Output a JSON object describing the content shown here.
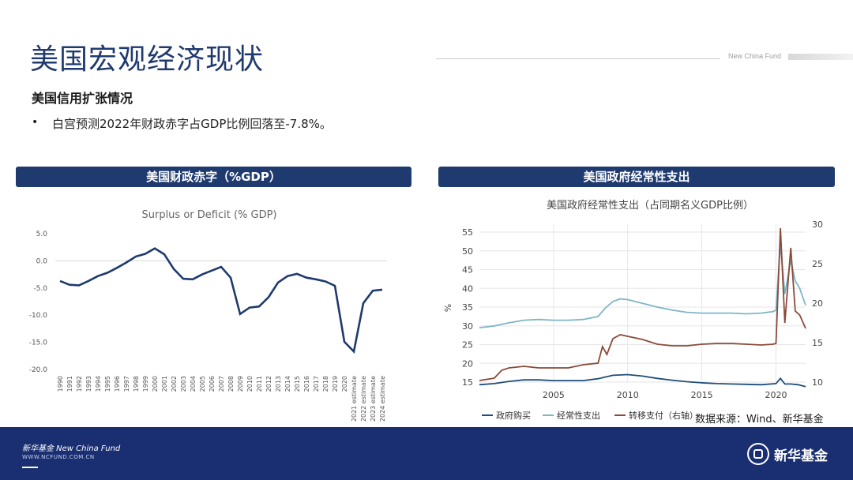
{
  "page": {
    "title": "美国宏观经济现状",
    "brand_small": "New China Fund",
    "subtitle": "美国信用扩张情况",
    "bullet": "白宫预测2022年财政赤字占GDP比例回落至-7.8%。",
    "source": "数据来源：Wind、新华基金"
  },
  "panels": {
    "left_header": "美国财政赤字（%GDP）",
    "right_header": "美国政府经常性支出"
  },
  "footer": {
    "brand": "新华基金 New China Fund",
    "url": "WWW.NCFUND.COM.CN",
    "logo_text": "新华基金"
  },
  "chart_data": [
    {
      "type": "line",
      "title": "Surplus or Deficit (% GDP)",
      "xlabel": "",
      "ylabel": "",
      "ylim": [
        -20,
        5
      ],
      "yticks": [
        "5.0",
        "0.0",
        "-5.0",
        "-10.0",
        "-15.0",
        "-20.0"
      ],
      "grid": false,
      "color": "#1f3a6e",
      "categories": [
        "1990",
        "1991",
        "1992",
        "1993",
        "1994",
        "1995",
        "1996",
        "1997",
        "1998",
        "1999",
        "2000",
        "2001",
        "2002",
        "2003",
        "2004",
        "2005",
        "2006",
        "2007",
        "2008",
        "2009",
        "2010",
        "2011",
        "2012",
        "2013",
        "2014",
        "2015",
        "2016",
        "2017",
        "2018",
        "2019",
        "2020",
        "2021 estimate",
        "2022 estimate",
        "2023 estimate",
        "2024 estimate"
      ],
      "values": [
        -3.7,
        -4.4,
        -4.5,
        -3.7,
        -2.8,
        -2.2,
        -1.3,
        -0.3,
        0.8,
        1.3,
        2.3,
        1.2,
        -1.5,
        -3.3,
        -3.4,
        -2.5,
        -1.8,
        -1.1,
        -3.1,
        -9.8,
        -8.6,
        -8.4,
        -6.7,
        -4.0,
        -2.8,
        -2.4,
        -3.1,
        -3.4,
        -3.8,
        -4.6,
        -14.9,
        -16.7,
        -7.8,
        -5.5,
        -5.3
      ]
    },
    {
      "type": "line",
      "title": "美国政府经常性支出（占同期名义GDP比例）",
      "ylabel": "%",
      "ylim": [
        15,
        55
      ],
      "yticks": [
        "15",
        "20",
        "25",
        "30",
        "35",
        "40",
        "45",
        "50",
        "55"
      ],
      "y2lim": [
        10,
        30
      ],
      "y2ticks": [
        "10",
        "15",
        "20",
        "25",
        "30"
      ],
      "xticks": [
        "2005",
        "2010",
        "2015",
        "2020"
      ],
      "xlim": [
        2000,
        2022
      ],
      "grid": true,
      "legend_position": "bottom",
      "series": [
        {
          "name": "政府购买",
          "axis": "left",
          "color": "#1f4e79",
          "x": [
            2000,
            2001,
            2002,
            2003,
            2004,
            2005,
            2006,
            2007,
            2008,
            2009,
            2010,
            2011,
            2012,
            2013,
            2014,
            2015,
            2016,
            2017,
            2018,
            2019,
            2020,
            2020.3,
            2020.6,
            2021,
            2021.5,
            2022
          ],
          "y": [
            14.3,
            14.6,
            15.2,
            15.6,
            15.6,
            15.4,
            15.4,
            15.4,
            15.9,
            16.8,
            17.0,
            16.6,
            16.0,
            15.5,
            15.1,
            14.8,
            14.6,
            14.5,
            14.4,
            14.3,
            14.6,
            16.0,
            14.5,
            14.5,
            14.3,
            13.8
          ]
        },
        {
          "name": "经常性支出",
          "axis": "left",
          "color": "#7fb6c8",
          "x": [
            2000,
            2001,
            2002,
            2003,
            2004,
            2005,
            2006,
            2007,
            2008,
            2008.5,
            2009,
            2009.5,
            2010,
            2011,
            2012,
            2013,
            2014,
            2015,
            2016,
            2017,
            2018,
            2019,
            2019.8,
            2020,
            2020.3,
            2020.6,
            2021,
            2021.3,
            2021.6,
            2022
          ],
          "y": [
            29.5,
            30.0,
            30.8,
            31.5,
            31.7,
            31.5,
            31.5,
            31.7,
            32.5,
            34.8,
            36.5,
            37.2,
            37.0,
            36.0,
            35.0,
            34.2,
            33.6,
            33.4,
            33.4,
            33.4,
            33.2,
            33.4,
            33.8,
            34.2,
            52.0,
            38.5,
            47.5,
            42.0,
            40.0,
            35.5
          ]
        },
        {
          "name": "转移支付（右轴）",
          "axis": "right",
          "color": "#8b4a3a",
          "x": [
            2000,
            2001,
            2001.5,
            2002,
            2003,
            2004,
            2005,
            2006,
            2007,
            2008,
            2008.3,
            2008.6,
            2009,
            2009.5,
            2010,
            2011,
            2012,
            2013,
            2014,
            2015,
            2016,
            2017,
            2018,
            2019,
            2019.8,
            2020,
            2020.3,
            2020.6,
            2021,
            2021.3,
            2021.6,
            2022
          ],
          "y": [
            10.2,
            10.5,
            11.5,
            11.8,
            12.0,
            11.8,
            11.8,
            11.8,
            12.2,
            12.4,
            14.5,
            13.5,
            15.5,
            16.0,
            15.8,
            15.4,
            14.8,
            14.6,
            14.6,
            14.8,
            14.9,
            14.9,
            14.8,
            14.7,
            14.8,
            14.9,
            29.5,
            17.5,
            27.0,
            19.0,
            18.5,
            16.8
          ]
        }
      ]
    }
  ]
}
